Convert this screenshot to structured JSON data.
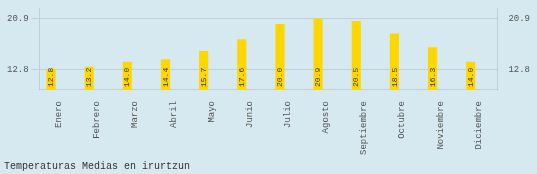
{
  "chart_data": {
    "type": "bar",
    "title": "Temperaturas Medias en irurtzun",
    "categories": [
      "Enero",
      "Febrero",
      "Marzo",
      "Abril",
      "Mayo",
      "Junio",
      "Julio",
      "Agosto",
      "Septiembre",
      "Octubre",
      "Noviembre",
      "Diciembre"
    ],
    "values": [
      12.8,
      13.2,
      14.0,
      14.4,
      15.7,
      17.6,
      20.0,
      20.9,
      20.5,
      18.5,
      16.3,
      14.0
    ],
    "value_labels": [
      "12.8",
      "13.2",
      "14.0",
      "14.4",
      "15.7",
      "17.6",
      "20.0",
      "20.9",
      "20.5",
      "18.5",
      "16.3",
      "14.0"
    ],
    "color": "#FFD700",
    "ylim": [
      9.5,
      22.5
    ],
    "yticks": [
      12.8,
      20.9
    ],
    "y2lim": [
      9.5,
      22.5
    ],
    "y2ticks": [
      12.8,
      20.9
    ],
    "grid": true,
    "data_labels": true
  }
}
